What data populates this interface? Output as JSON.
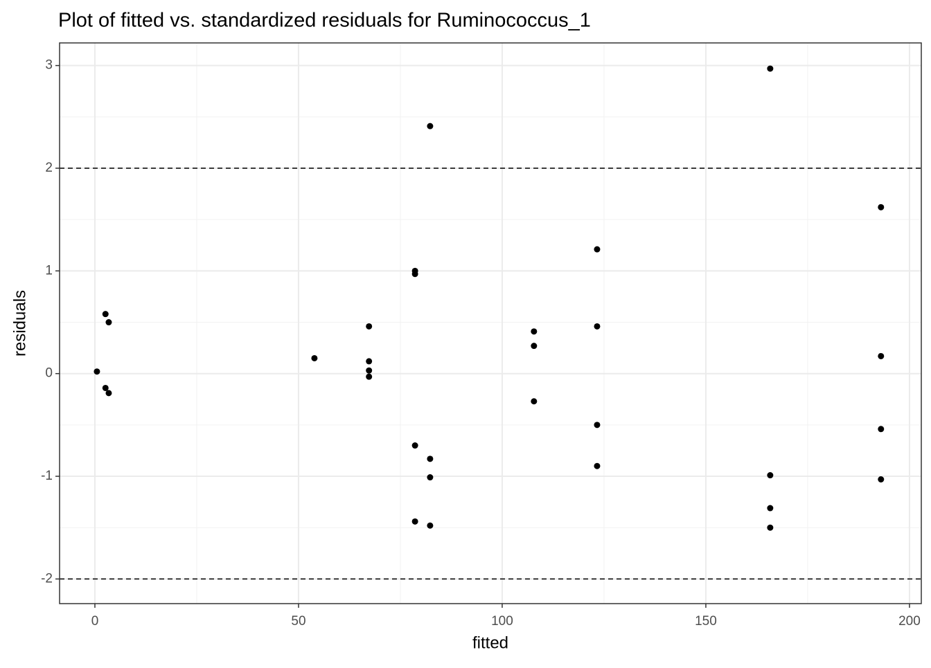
{
  "chart_data": {
    "type": "scatter",
    "title": "Plot of fitted vs. standardized residuals for Ruminococcus_1",
    "xlabel": "fitted",
    "ylabel": "residuals",
    "color": "#000000",
    "grid": true,
    "xlim": [
      -8.67,
      202.9
    ],
    "ylim": [
      -2.24,
      3.22
    ],
    "xticks": [
      0,
      50,
      100,
      150,
      200
    ],
    "yticks": [
      -2,
      -1,
      0,
      1,
      2,
      3
    ],
    "hlines": [
      2,
      -2
    ],
    "x": [
      0.5,
      2.6,
      3.4,
      2.6,
      3.4,
      53.9,
      67.3,
      67.3,
      67.3,
      67.3,
      78.6,
      78.6,
      78.6,
      78.6,
      82.3,
      82.3,
      82.3,
      82.3,
      107.8,
      107.8,
      107.8,
      123.3,
      123.3,
      123.3,
      123.3,
      165.8,
      165.8,
      165.8,
      165.8,
      193.0,
      193.0,
      193.0,
      193.0
    ],
    "values": [
      0.02,
      0.58,
      0.5,
      -0.14,
      -0.19,
      0.15,
      0.46,
      0.12,
      0.03,
      -0.03,
      1.0,
      0.97,
      -0.7,
      -1.44,
      2.41,
      -0.83,
      -1.01,
      -1.48,
      0.41,
      0.27,
      -0.27,
      1.21,
      0.46,
      -0.5,
      -0.9,
      2.97,
      -0.99,
      -1.31,
      -1.5,
      1.62,
      0.17,
      -0.54,
      -1.03
    ]
  }
}
